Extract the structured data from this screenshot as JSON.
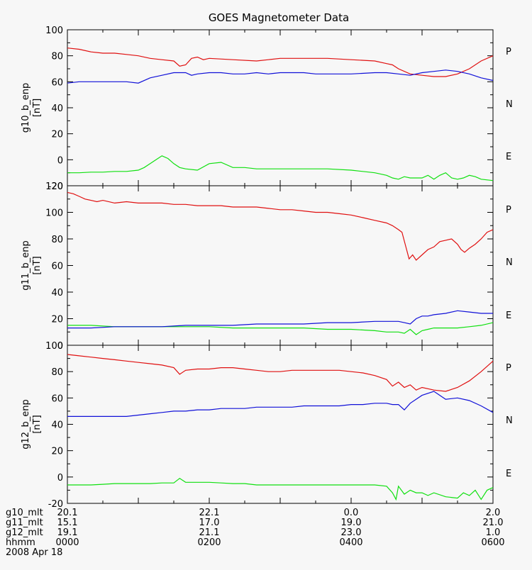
{
  "chart_data": {
    "title": "GOES Magnetometer Data",
    "type": "line",
    "x_range": [
      0,
      360
    ],
    "x_tick_minutes": [
      0,
      60,
      120,
      180,
      240,
      300,
      360
    ],
    "x_minor_minutes": [
      30,
      90,
      150,
      210,
      270,
      330
    ],
    "panels": [
      {
        "ylabel": "g10_b_enp",
        "yunit": "[nT]",
        "ylim": [
          -20,
          100
        ],
        "yticks": [
          -20,
          0,
          20,
          40,
          60,
          80,
          100
        ],
        "series": [
          {
            "name": "P",
            "color": "#e01010",
            "x": [
              0,
              10,
              20,
              30,
              40,
              50,
              60,
              70,
              80,
              90,
              95,
              100,
              105,
              110,
              115,
              120,
              140,
              160,
              170,
              180,
              200,
              220,
              240,
              260,
              270,
              275,
              280,
              290,
              300,
              310,
              320,
              330,
              340,
              350,
              360
            ],
            "y": [
              86,
              85,
              83,
              82,
              82,
              81,
              80,
              78,
              77,
              76,
              72,
              73,
              78,
              79,
              77,
              78,
              77,
              76,
              77,
              78,
              78,
              78,
              77,
              76,
              74,
              73,
              70,
              66,
              65,
              64,
              64,
              66,
              70,
              76,
              80
            ]
          },
          {
            "name": "N",
            "color": "#10e010",
            "x": [],
            "y": []
          },
          {
            "name": "E",
            "color": "#1010d8",
            "x": [
              0,
              10,
              20,
              30,
              40,
              50,
              60,
              70,
              80,
              90,
              100,
              105,
              110,
              120,
              130,
              140,
              150,
              160,
              170,
              180,
              190,
              200,
              210,
              220,
              240,
              260,
              270,
              280,
              290,
              300,
              310,
              320,
              330,
              340,
              350,
              360
            ],
            "y": [
              59,
              60,
              60,
              60,
              60,
              60,
              59,
              63,
              65,
              67,
              67,
              65,
              66,
              67,
              67,
              66,
              66,
              67,
              66,
              67,
              67,
              67,
              66,
              66,
              66,
              67,
              67,
              66,
              65,
              67,
              68,
              69,
              68,
              66,
              63,
              61
            ]
          },
          {
            "name": "",
            "color": "#10e010",
            "x": [
              0,
              10,
              20,
              30,
              40,
              50,
              60,
              65,
              70,
              75,
              80,
              85,
              90,
              95,
              100,
              110,
              120,
              130,
              140,
              150,
              160,
              170,
              180,
              200,
              220,
              240,
              260,
              270,
              275,
              280,
              285,
              290,
              300,
              305,
              310,
              315,
              320,
              325,
              330,
              335,
              340,
              345,
              350,
              360
            ],
            "y": [
              -10,
              -10,
              -9.5,
              -9.5,
              -9,
              -9,
              -8,
              -6,
              -3,
              0,
              3,
              1,
              -3,
              -6,
              -7,
              -8,
              -3,
              -2,
              -6,
              -6,
              -7,
              -7,
              -7,
              -7,
              -7,
              -8,
              -10,
              -12,
              -14,
              -15,
              -13,
              -14,
              -14,
              -12,
              -15,
              -12,
              -10,
              -14,
              -15,
              -14,
              -12,
              -13,
              -15,
              -16
            ]
          }
        ]
      },
      {
        "ylabel": "g11_b_enp",
        "yunit": "[nT]",
        "ylim": [
          0,
          120
        ],
        "yticks": [
          0,
          20,
          40,
          60,
          80,
          100,
          120
        ],
        "series": [
          {
            "name": "P",
            "color": "#e01010",
            "x": [
              0,
              5,
              10,
              15,
              20,
              25,
              30,
              40,
              50,
              60,
              70,
              80,
              90,
              100,
              110,
              120,
              130,
              140,
              150,
              160,
              170,
              180,
              190,
              200,
              210,
              220,
              230,
              240,
              250,
              260,
              270,
              275,
              280,
              283,
              286,
              289,
              292,
              295,
              300,
              305,
              310,
              315,
              320,
              325,
              330,
              333,
              336,
              340,
              345,
              350,
              355,
              360
            ],
            "y": [
              115,
              114,
              112,
              110,
              109,
              108,
              109,
              107,
              108,
              107,
              107,
              107,
              106,
              106,
              105,
              105,
              105,
              104,
              104,
              104,
              103,
              102,
              102,
              101,
              100,
              100,
              99,
              98,
              96,
              94,
              92,
              90,
              87,
              85,
              75,
              65,
              68,
              64,
              68,
              72,
              74,
              78,
              79,
              80,
              76,
              72,
              70,
              73,
              76,
              80,
              85,
              87
            ]
          },
          {
            "name": "N",
            "color": "#10e010",
            "x": [
              0,
              20,
              40,
              60,
              80,
              100,
              120,
              140,
              160,
              180,
              200,
              220,
              240,
              260,
              270,
              280,
              285,
              290,
              295,
              300,
              305,
              310,
              320,
              330,
              340,
              350,
              360
            ],
            "y": [
              15,
              15,
              14,
              14,
              14,
              14,
              14,
              13,
              13,
              13,
              13,
              12,
              12,
              11,
              10,
              10,
              9,
              12,
              8,
              11,
              12,
              13,
              13,
              13,
              14,
              15,
              17
            ]
          },
          {
            "name": "E",
            "color": "#1010d8",
            "x": [
              0,
              20,
              40,
              60,
              80,
              100,
              120,
              140,
              160,
              180,
              200,
              220,
              240,
              260,
              270,
              280,
              285,
              290,
              295,
              300,
              305,
              310,
              320,
              330,
              340,
              350,
              360
            ],
            "y": [
              13,
              13,
              14,
              14,
              14,
              15,
              15,
              15,
              16,
              16,
              16,
              17,
              17,
              18,
              18,
              18,
              17,
              16,
              20,
              22,
              22,
              23,
              24,
              26,
              25,
              24,
              24
            ]
          },
          {
            "name": "",
            "color": "#10e010",
            "x": [],
            "y": []
          }
        ]
      },
      {
        "ylabel": "g12_b_enp",
        "yunit": "[nT]",
        "ylim": [
          -20,
          100
        ],
        "yticks": [
          -20,
          0,
          20,
          40,
          60,
          80,
          100
        ],
        "series": [
          {
            "name": "P",
            "color": "#e01010",
            "x": [
              0,
              10,
              20,
              30,
              40,
              50,
              60,
              70,
              80,
              90,
              95,
              100,
              110,
              120,
              130,
              140,
              150,
              160,
              170,
              180,
              190,
              200,
              210,
              220,
              230,
              240,
              250,
              260,
              270,
              275,
              280,
              285,
              290,
              295,
              300,
              310,
              320,
              330,
              340,
              350,
              360
            ],
            "y": [
              93,
              92,
              91,
              90,
              89,
              88,
              87,
              86,
              85,
              83,
              78,
              81,
              82,
              82,
              83,
              83,
              82,
              81,
              80,
              80,
              81,
              81,
              81,
              81,
              81,
              80,
              79,
              77,
              74,
              69,
              72,
              68,
              70,
              66,
              68,
              66,
              65,
              68,
              73,
              80,
              88
            ]
          },
          {
            "name": "N",
            "color": "#10e010",
            "x": [],
            "y": []
          },
          {
            "name": "E",
            "color": "#1010d8",
            "x": [
              0,
              10,
              20,
              30,
              40,
              50,
              60,
              70,
              80,
              90,
              100,
              110,
              120,
              130,
              140,
              150,
              160,
              170,
              180,
              190,
              200,
              210,
              220,
              230,
              240,
              250,
              260,
              270,
              275,
              280,
              285,
              290,
              300,
              310,
              315,
              320,
              330,
              340,
              350,
              360
            ],
            "y": [
              46,
              46,
              46,
              46,
              46,
              46,
              47,
              48,
              49,
              50,
              50,
              51,
              51,
              52,
              52,
              52,
              53,
              53,
              53,
              53,
              54,
              54,
              54,
              54,
              55,
              55,
              56,
              56,
              55,
              55,
              51,
              56,
              62,
              65,
              62,
              59,
              60,
              58,
              54,
              49
            ]
          },
          {
            "name": "",
            "color": "#10e010",
            "x": [
              0,
              10,
              20,
              30,
              40,
              50,
              60,
              70,
              80,
              90,
              95,
              100,
              110,
              120,
              130,
              140,
              150,
              160,
              170,
              180,
              200,
              220,
              240,
              260,
              270,
              275,
              278,
              280,
              285,
              290,
              295,
              300,
              305,
              310,
              320,
              330,
              335,
              340,
              345,
              350,
              355,
              360
            ],
            "y": [
              -6,
              -6,
              -6,
              -5.5,
              -5,
              -5,
              -5,
              -5,
              -4.5,
              -4.5,
              -1,
              -4,
              -4,
              -4,
              -4.5,
              -5,
              -5,
              -6,
              -6,
              -6,
              -6,
              -6,
              -6,
              -6,
              -7,
              -12,
              -17,
              -7,
              -13,
              -10,
              -12,
              -12,
              -14,
              -12,
              -15,
              -16,
              -12,
              -14,
              -10,
              -17,
              -10,
              -8
            ]
          }
        ]
      }
    ],
    "side_labels": [
      "P",
      "N",
      "E"
    ],
    "side_colors": [
      "#e01010",
      "#10e010",
      "#1010d8"
    ],
    "x_rows": [
      {
        "label": "g10_mlt",
        "values": [
          "20.1",
          "22.1",
          "0.0",
          "2.0"
        ]
      },
      {
        "label": "g11_mlt",
        "values": [
          "15.1",
          "17.0",
          "19.0",
          "21.0"
        ]
      },
      {
        "label": "g12_mlt",
        "values": [
          "19.1",
          "21.1",
          "23.0",
          "1.0"
        ]
      },
      {
        "label": "hhmm",
        "values": [
          "0000",
          "0200",
          "0400",
          "0600"
        ]
      }
    ],
    "date": "2008 Apr 18"
  }
}
